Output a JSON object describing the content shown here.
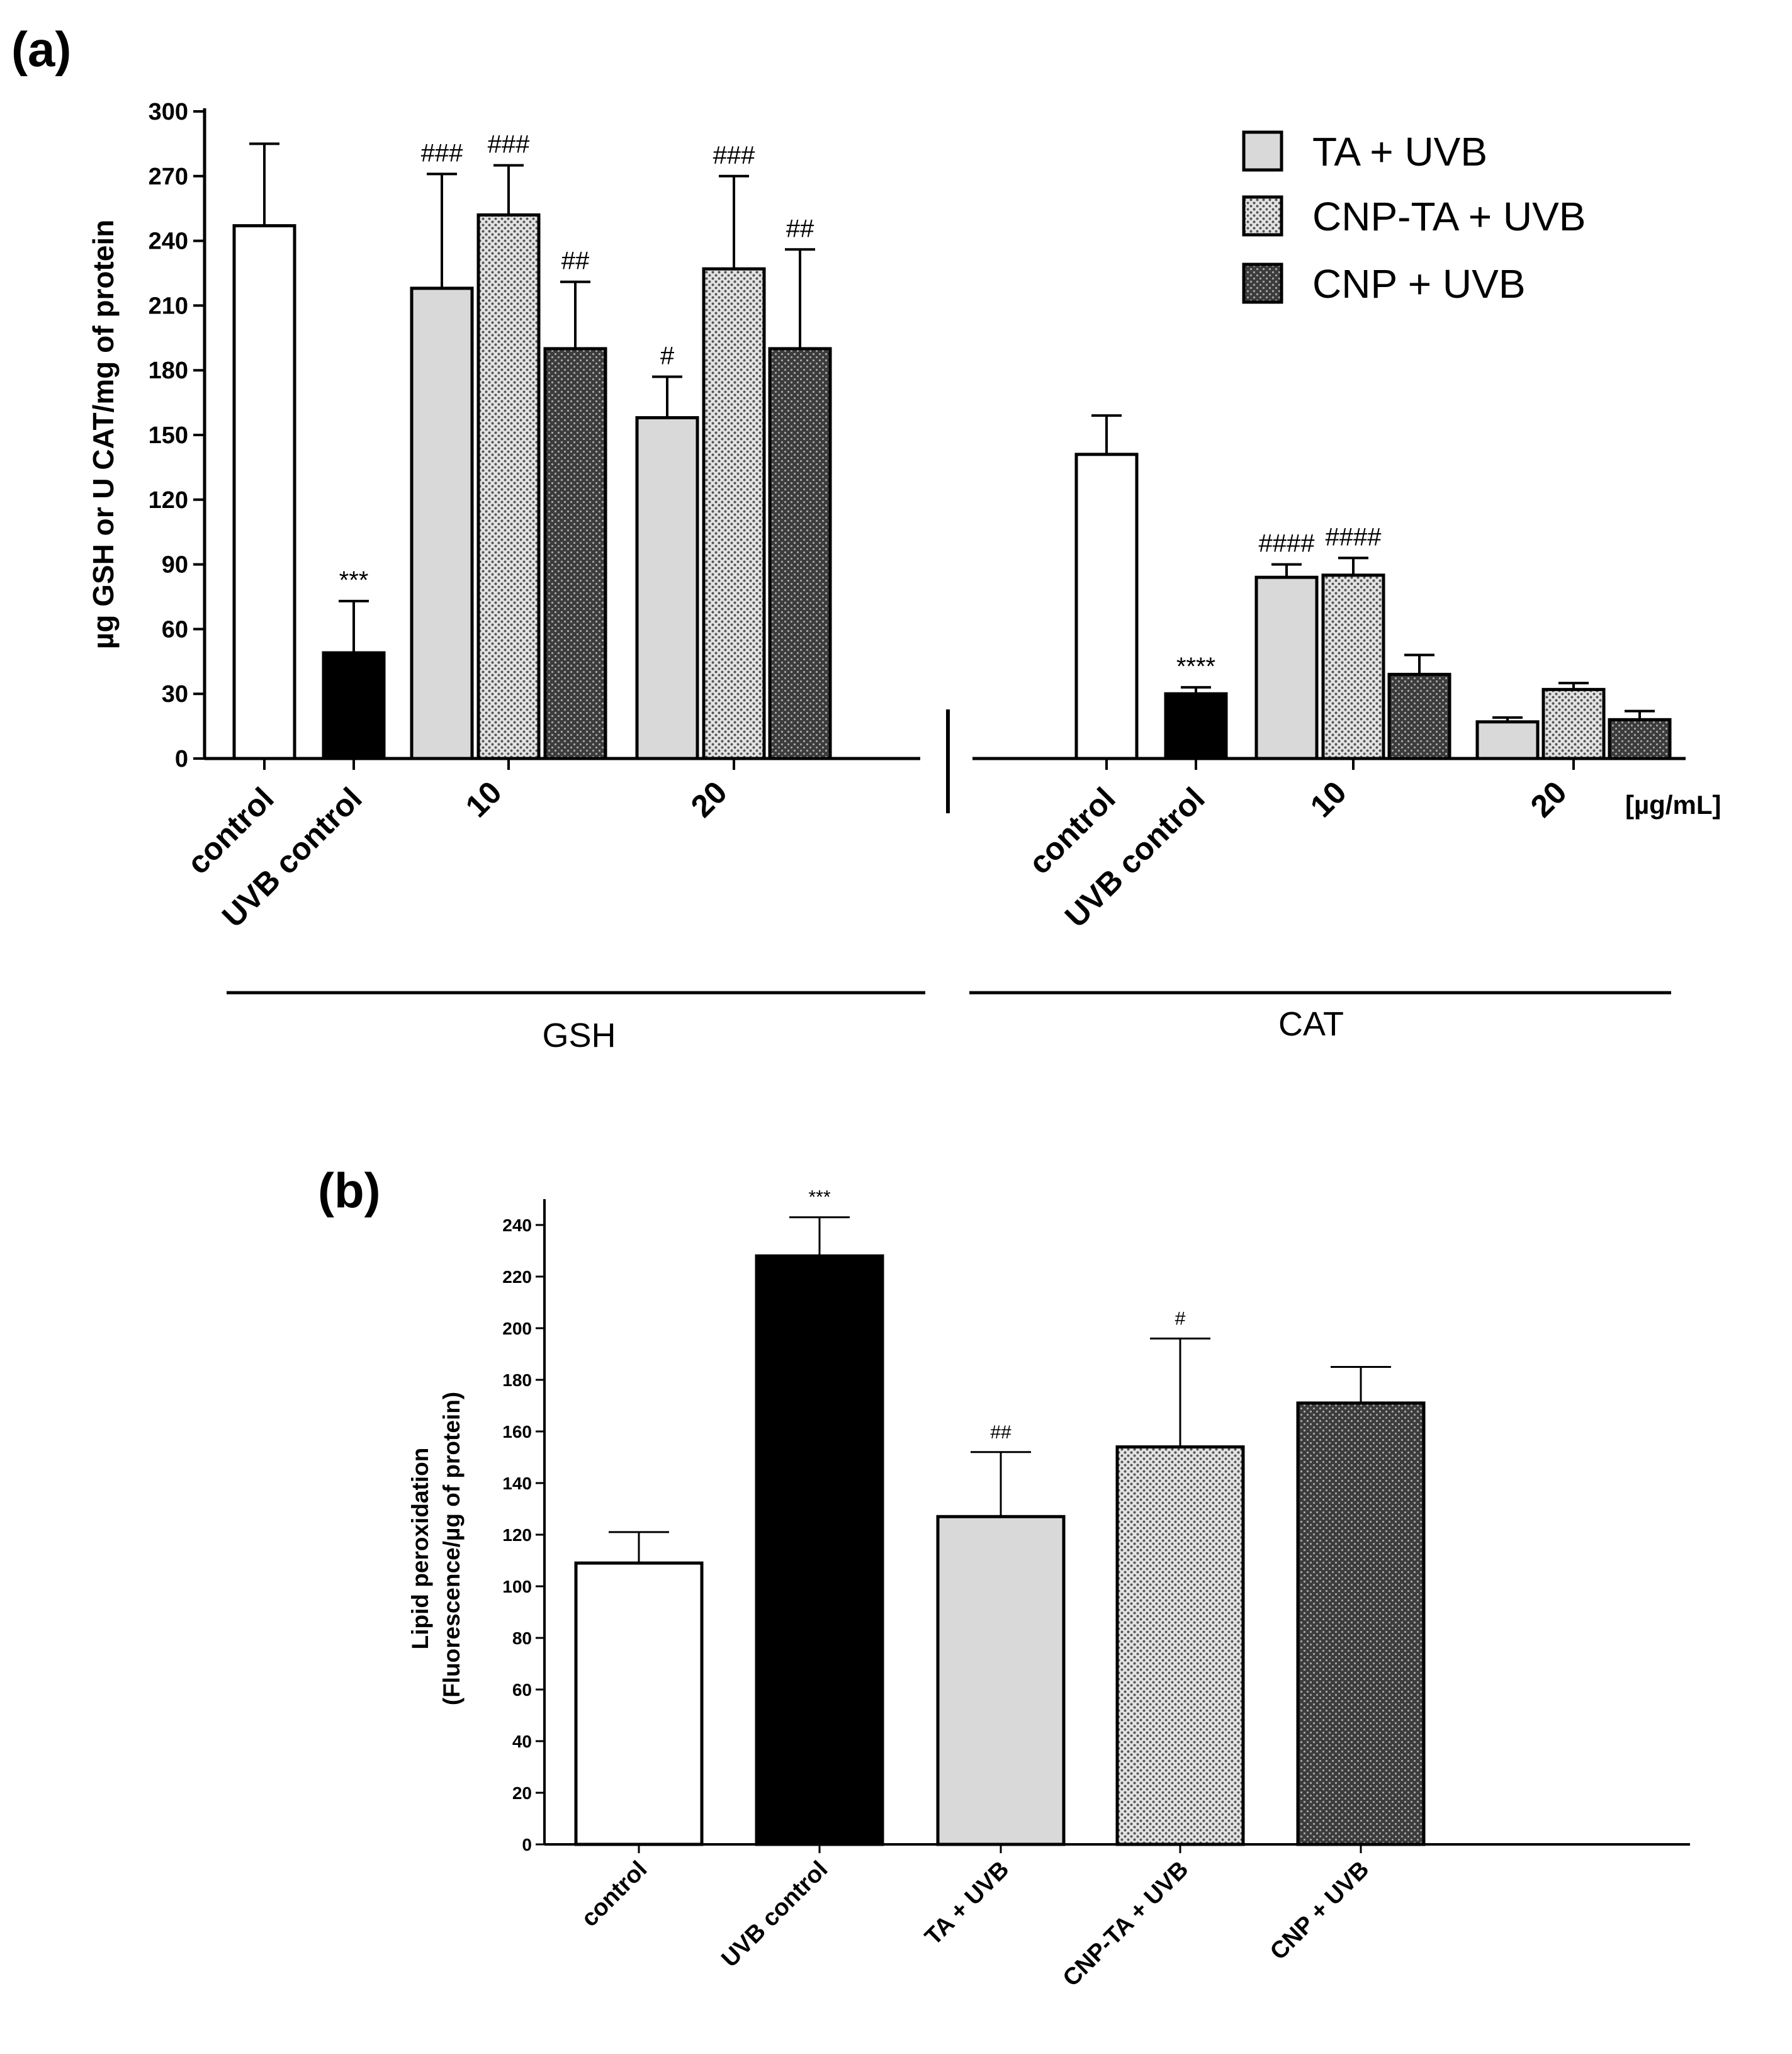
{
  "chart_data": [
    {
      "panel": "(a)",
      "type": "bar",
      "ylabel": "µg GSH or U CAT/mg of protein",
      "ylim": [
        0,
        300
      ],
      "yticks": [
        0,
        30,
        60,
        90,
        120,
        150,
        180,
        210,
        240,
        270,
        300
      ],
      "unit_label": "[µg/mL]",
      "legend": [
        {
          "name": "TA + UVB",
          "pattern": "light"
        },
        {
          "name": "CNP-TA + UVB",
          "pattern": "dots"
        },
        {
          "name": "CNP + UVB",
          "pattern": "dark"
        }
      ],
      "groups": [
        {
          "name": "GSH",
          "categories": [
            "control",
            "UVB control",
            "10",
            "20"
          ],
          "bars": [
            {
              "category": "control",
              "series": "control",
              "value": 247,
              "error": 38,
              "sig": ""
            },
            {
              "category": "UVB control",
              "series": "UVB control",
              "value": 49,
              "error": 24,
              "sig": "***"
            },
            {
              "category": "10",
              "series": "TA + UVB",
              "value": 218,
              "error": 53,
              "sig": "###"
            },
            {
              "category": "10",
              "series": "CNP-TA + UVB",
              "value": 252,
              "error": 23,
              "sig": "###"
            },
            {
              "category": "10",
              "series": "CNP + UVB",
              "value": 190,
              "error": 31,
              "sig": "##"
            },
            {
              "category": "20",
              "series": "TA + UVB",
              "value": 158,
              "error": 19,
              "sig": "#"
            },
            {
              "category": "20",
              "series": "CNP-TA + UVB",
              "value": 227,
              "error": 43,
              "sig": "###"
            },
            {
              "category": "20",
              "series": "CNP + UVB",
              "value": 190,
              "error": 46,
              "sig": "##"
            }
          ]
        },
        {
          "name": "CAT",
          "categories": [
            "control",
            "UVB control",
            "10",
            "20"
          ],
          "bars": [
            {
              "category": "control",
              "series": "control",
              "value": 141,
              "error": 18,
              "sig": ""
            },
            {
              "category": "UVB control",
              "series": "UVB control",
              "value": 30,
              "error": 3,
              "sig": "****"
            },
            {
              "category": "10",
              "series": "TA + UVB",
              "value": 84,
              "error": 6,
              "sig": "####"
            },
            {
              "category": "10",
              "series": "CNP-TA + UVB",
              "value": 85,
              "error": 8,
              "sig": "####"
            },
            {
              "category": "10",
              "series": "CNP + UVB",
              "value": 39,
              "error": 9,
              "sig": ""
            },
            {
              "category": "20",
              "series": "TA + UVB",
              "value": 17,
              "error": 2,
              "sig": ""
            },
            {
              "category": "20",
              "series": "CNP-TA + UVB",
              "value": 32,
              "error": 3,
              "sig": ""
            },
            {
              "category": "20",
              "series": "CNP + UVB",
              "value": 18,
              "error": 4,
              "sig": ""
            }
          ]
        }
      ]
    },
    {
      "panel": "(b)",
      "type": "bar",
      "ylabel_line1": "Lipid peroxidation",
      "ylabel_line2": "(Fluorescence/µg of protein)",
      "ylim": [
        0,
        250
      ],
      "yticks": [
        0,
        20,
        40,
        60,
        80,
        100,
        120,
        140,
        160,
        180,
        200,
        220,
        240
      ],
      "categories": [
        "control",
        "UVB control",
        "TA + UVB",
        "CNP-TA + UVB",
        "CNP + UVB"
      ],
      "bars": [
        {
          "category": "control",
          "series": "control",
          "value": 109,
          "error": 12,
          "sig": ""
        },
        {
          "category": "UVB control",
          "series": "UVB control",
          "value": 228,
          "error": 15,
          "sig": "***"
        },
        {
          "category": "TA + UVB",
          "series": "TA + UVB",
          "value": 127,
          "error": 25,
          "sig": "##"
        },
        {
          "category": "CNP-TA + UVB",
          "series": "CNP-TA + UVB",
          "value": 154,
          "error": 42,
          "sig": "#"
        },
        {
          "category": "CNP + UVB",
          "series": "CNP + UVB",
          "value": 171,
          "error": 14,
          "sig": ""
        }
      ]
    }
  ],
  "colors": {
    "axis": "#000000",
    "control_fill": "#ffffff",
    "uvb_fill": "#000000",
    "ta_fill": "#d9d9d9",
    "cnpta_fill": "#bdbdbd",
    "cnp_fill": "#4d4d4d"
  }
}
